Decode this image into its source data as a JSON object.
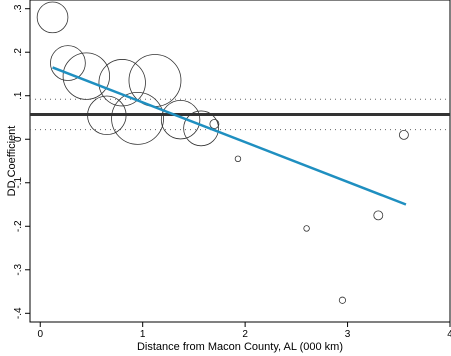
{
  "chart_data": {
    "type": "scatter",
    "xlabel": "Distance from Macon County, AL (000 km)",
    "ylabel": "DD Coefficient",
    "xlim": [
      -0.1,
      4.0
    ],
    "ylim": [
      -0.42,
      0.32
    ],
    "x_ticks": [
      0,
      1,
      2,
      3,
      4
    ],
    "x_tick_labels": [
      "0",
      "1",
      "2",
      "3",
      "4"
    ],
    "y_ticks": [
      0.3,
      0.2,
      0.1,
      0,
      -0.1,
      -0.2,
      -0.3,
      -0.4
    ],
    "y_tick_labels": [
      ".3",
      ".2",
      ".1",
      "0",
      "-.1",
      "-.2",
      "-.3",
      "-.4"
    ],
    "grid": false,
    "series": [
      {
        "marker": "hollow-circle-weighted",
        "points": [
          {
            "x": 0.12,
            "y": 0.28,
            "weight": 0.35
          },
          {
            "x": 0.27,
            "y": 0.175,
            "weight": 0.45
          },
          {
            "x": 0.45,
            "y": 0.145,
            "weight": 0.8
          },
          {
            "x": 0.65,
            "y": 0.055,
            "weight": 0.55
          },
          {
            "x": 0.8,
            "y": 0.13,
            "weight": 0.8
          },
          {
            "x": 0.95,
            "y": 0.048,
            "weight": 1.0
          },
          {
            "x": 1.12,
            "y": 0.135,
            "weight": 1.0
          },
          {
            "x": 1.37,
            "y": 0.045,
            "weight": 0.55
          },
          {
            "x": 1.57,
            "y": 0.025,
            "weight": 0.45
          },
          {
            "x": 1.7,
            "y": 0.035,
            "weight": 0.03
          },
          {
            "x": 1.93,
            "y": -0.045,
            "weight": 0.01
          },
          {
            "x": 2.6,
            "y": -0.205,
            "weight": 0.01
          },
          {
            "x": 2.95,
            "y": -0.37,
            "weight": 0.015
          },
          {
            "x": 3.3,
            "y": -0.175,
            "weight": 0.03
          },
          {
            "x": 3.55,
            "y": 0.01,
            "weight": 0.03
          }
        ]
      }
    ],
    "fit_line": {
      "x": [
        0.12,
        3.57
      ],
      "y": [
        0.165,
        -0.15
      ],
      "color": "#1f8fc0"
    },
    "horizontal_lines": [
      {
        "y": 0.057,
        "style": "solid",
        "color": "#333333"
      },
      {
        "y": 0.092,
        "style": "dotted",
        "color": "#666666"
      },
      {
        "y": 0.022,
        "style": "dotted",
        "color": "#666666"
      }
    ]
  }
}
